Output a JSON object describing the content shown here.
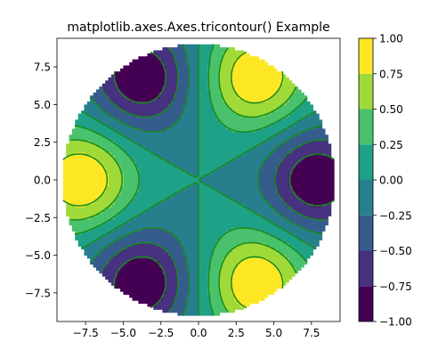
{
  "chart_data": {
    "type": "tricontour",
    "title": "matplotlib.axes.Axes.tricontour() Example",
    "xlabel": "",
    "ylabel": "",
    "xlim": [
      -9.4,
      9.4
    ],
    "ylim": [
      -9.4,
      9.4
    ],
    "xticks": [
      -7.5,
      -5.0,
      -2.5,
      0.0,
      2.5,
      5.0,
      7.5
    ],
    "xtick_labels": [
      "−7.5",
      "−5.0",
      "−2.5",
      "0.0",
      "2.5",
      "5.0",
      "7.5"
    ],
    "yticks": [
      -7.5,
      -5.0,
      -2.5,
      0.0,
      2.5,
      5.0,
      7.5
    ],
    "ytick_labels": [
      "−7.5",
      "−5.0",
      "−2.5",
      "0.0",
      "2.5",
      "5.0",
      "7.5"
    ],
    "domain": {
      "shape": "disk",
      "center": [
        0,
        0
      ],
      "radius": 9.0
    },
    "colormap": "viridis",
    "filled_levels": [
      -1.0,
      -0.75,
      -0.5,
      -0.25,
      0.0,
      0.25,
      0.5,
      0.75,
      1.0
    ],
    "line_levels": [
      -0.75,
      -0.5,
      -0.25,
      0.0,
      0.25,
      0.5,
      0.75
    ],
    "line_color": "#1a8a1a",
    "negative_linestyle": "dashed",
    "extrema": [
      {
        "x": -3.8,
        "y": 6.8,
        "value": -1.0
      },
      {
        "x": 3.8,
        "y": 6.8,
        "value": 1.0
      },
      {
        "x": 7.8,
        "y": 0.0,
        "value": -1.0
      },
      {
        "x": 3.8,
        "y": -6.8,
        "value": 1.0
      },
      {
        "x": -3.8,
        "y": -6.8,
        "value": -1.0
      },
      {
        "x": -7.8,
        "y": 0.0,
        "value": 1.0
      }
    ],
    "colorbar": {
      "ticks": [
        -1.0,
        -0.75,
        -0.5,
        -0.25,
        0.0,
        0.25,
        0.5,
        0.75,
        1.0
      ],
      "tick_labels": [
        "−1.00",
        "−0.75",
        "−0.50",
        "−0.25",
        "0.00",
        "0.25",
        "0.50",
        "0.75",
        "1.00"
      ],
      "colors": [
        "#440154",
        "#46327e",
        "#365c8d",
        "#277f8e",
        "#1fa187",
        "#4ac16d",
        "#a0da39",
        "#fde725"
      ]
    }
  }
}
